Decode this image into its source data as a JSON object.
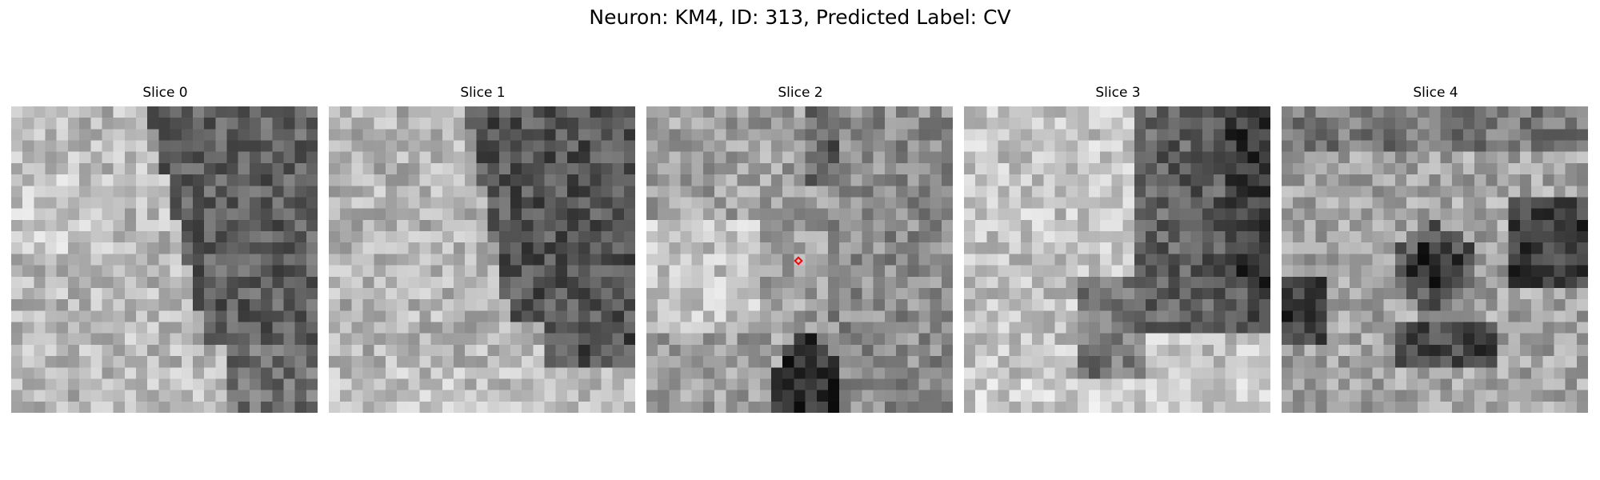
{
  "figure": {
    "title": "Neuron: KM4, ID: 313, Predicted Label: CV"
  },
  "slices": [
    {
      "title": "Slice 0"
    },
    {
      "title": "Slice 1"
    },
    {
      "title": "Slice 2"
    },
    {
      "title": "Slice 3"
    },
    {
      "title": "Slice 4"
    }
  ],
  "image": {
    "colormap": "gray",
    "grid_size": 27
  },
  "marker": {
    "slice": 2,
    "shape": "diamond",
    "color": "#ff0000"
  }
}
